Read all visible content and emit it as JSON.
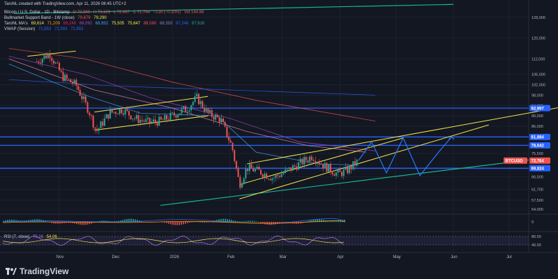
{
  "header": {
    "created": "TaroNL created with TradingView.com, Apr 11, 2026 08:45 UTC+2"
  },
  "legend": {
    "symbol": "Bitcoin / U.S. Dollar · 1D · Bitstamp",
    "ohlc": [
      "O 72,980",
      "H 73,129",
      "L 72,667",
      "C 72,764",
      "−216 (−0.30%)",
      "Vol 144.86"
    ],
    "bmsb_label": "Bullmarket Support Band - 1W (close)",
    "bmsb_values": [
      "79,679",
      "79,290"
    ],
    "ma_label": "TaroNL MA's",
    "ma_values": [
      "69,614",
      "71,209",
      "69,248",
      "69,092",
      "68,852",
      "75,505",
      "75,647",
      "88,080",
      "68,393",
      "97,246",
      "87,616"
    ],
    "vwap_label": "VWAP (Session)",
    "vwap_values": [
      "72,853",
      "72,993",
      "72,853"
    ],
    "rsi_label": "RSI (7, close)",
    "rsi_value": "75.06",
    "rsi_value2": "54.06"
  },
  "colors": {
    "background": "#131722",
    "up": "#26a69a",
    "down": "#ef5350",
    "yellow": "#f2e64b",
    "blue_line": "#2962ff",
    "green_line": "#18b591",
    "path": "#2979ff",
    "grid": "#1e2230"
  },
  "chart_data": {
    "type": "candlestick",
    "x_ticks": [
      "Nov",
      "Dec",
      "2026",
      "Feb",
      "Mar",
      "Apr",
      "May",
      "Jun",
      "Jul"
    ],
    "y_ticks": [
      "128,000",
      "120,000",
      "112,000",
      "106,000",
      "102,000",
      "98,000",
      "94,000",
      "90,000",
      "86,000",
      "78,500",
      "75,500",
      "69,500",
      "66,500",
      "61,700",
      "57,500",
      "54,000"
    ],
    "ylim": [
      54000,
      132000
    ],
    "price_labels": [
      {
        "text": "92,997",
        "value": 92997,
        "color": "#2962ff"
      },
      {
        "text": "81,884",
        "value": 81884,
        "color": "#2962ff"
      },
      {
        "text": "78,642",
        "value": 78642,
        "color": "#2962ff"
      },
      {
        "text": "BTCUSD",
        "value": 72764,
        "color": "#ef5350"
      },
      {
        "text": "72,764",
        "value": 72764,
        "color": "#ef5350"
      },
      {
        "text": "69,824",
        "value": 69824,
        "color": "#2962ff"
      }
    ],
    "horizontal_levels": [
      92997,
      81884,
      78642,
      69824
    ],
    "price_path": [
      [
        "2025-10-20",
        111000
      ],
      [
        "2025-10-27",
        114000
      ],
      [
        "2025-11-03",
        105000
      ],
      [
        "2025-11-10",
        102000
      ],
      [
        "2025-11-17",
        92000
      ],
      [
        "2025-11-21",
        84000
      ],
      [
        "2025-11-28",
        91000
      ],
      [
        "2025-12-05",
        92500
      ],
      [
        "2025-12-12",
        89000
      ],
      [
        "2025-12-19",
        87500
      ],
      [
        "2025-12-26",
        88000
      ],
      [
        "2026-01-02",
        90500
      ],
      [
        "2026-01-09",
        93000
      ],
      [
        "2026-01-14",
        97000
      ],
      [
        "2026-01-20",
        91000
      ],
      [
        "2026-01-27",
        88500
      ],
      [
        "2026-02-02",
        78000
      ],
      [
        "2026-02-06",
        63500
      ],
      [
        "2026-02-10",
        70000
      ],
      [
        "2026-02-17",
        68500
      ],
      [
        "2026-02-24",
        66000
      ],
      [
        "2026-03-03",
        68500
      ],
      [
        "2026-03-10",
        71500
      ],
      [
        "2026-03-17",
        74500
      ],
      [
        "2026-03-24",
        70500
      ],
      [
        "2026-03-31",
        67500
      ],
      [
        "2026-04-05",
        69000
      ],
      [
        "2026-04-11",
        72764
      ]
    ],
    "projection": [
      [
        "2026-04-11",
        72764
      ],
      [
        "2026-04-18",
        80000
      ],
      [
        "2026-04-26",
        68000
      ],
      [
        "2026-05-05",
        81500
      ],
      [
        "2026-05-14",
        67000
      ],
      [
        "2026-05-24",
        76000
      ],
      [
        "2026-05-31",
        81800
      ]
    ],
    "oscillator": {
      "label": "RSI (7, close)",
      "values": [
        "75.06",
        "54.06"
      ],
      "ticks": [
        "80.00",
        "40.00"
      ]
    },
    "macd_ticks": [
      "0"
    ]
  },
  "logo_text": "TradingView"
}
